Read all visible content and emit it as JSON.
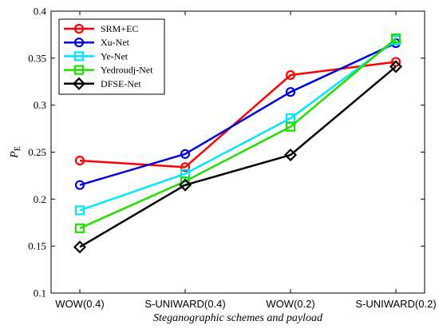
{
  "chart_data": {
    "type": "line",
    "categories": [
      "WOW(0.4)",
      "S-UNIWARD(0.4)",
      "WOW(0.2)",
      "S-UNIWARD(0.2)"
    ],
    "xlabel": "Steganographic schemes and payload",
    "ylabel_main": "P",
    "ylabel_sub": "E",
    "ylim": [
      0.1,
      0.4
    ],
    "yticks": [
      0.1,
      0.15,
      0.2,
      0.25,
      0.3,
      0.35,
      0.4
    ],
    "ytick_labels": [
      "0.1",
      "0.15",
      "0.2",
      "0.25",
      "0.3",
      "0.35",
      "0.4"
    ],
    "grid": false,
    "legend_position": "top-left",
    "series": [
      {
        "name": "SRM+EC",
        "color": "#ff0000",
        "marker": "circle",
        "values": [
          0.241,
          0.234,
          0.332,
          0.346
        ]
      },
      {
        "name": "Xu-Net",
        "color": "#0000dd",
        "marker": "circle",
        "values": [
          0.215,
          0.248,
          0.314,
          0.366
        ]
      },
      {
        "name": "Ye-Net",
        "color": "#00e5ff",
        "marker": "square",
        "values": [
          0.188,
          0.227,
          0.286,
          0.369
        ]
      },
      {
        "name": "Yedroudj-Net",
        "color": "#22dd00",
        "marker": "square",
        "values": [
          0.169,
          0.219,
          0.277,
          0.371
        ]
      },
      {
        "name": "DFSE-Net",
        "color": "#000000",
        "marker": "diamond",
        "values": [
          0.149,
          0.215,
          0.247,
          0.341
        ]
      }
    ]
  }
}
